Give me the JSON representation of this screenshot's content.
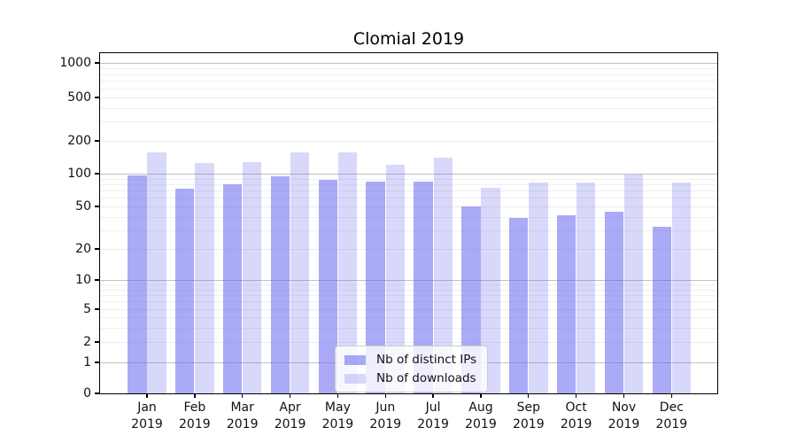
{
  "chart_data": {
    "type": "bar",
    "title": "Clomial 2019",
    "categories": [
      "Jan",
      "Feb",
      "Mar",
      "Apr",
      "May",
      "Jun",
      "Jul",
      "Aug",
      "Sep",
      "Oct",
      "Nov",
      "Dec"
    ],
    "year_label": "2019",
    "series": [
      {
        "name": "Nb of distinct IPs",
        "color": "rgba(100,100,240,0.55)",
        "values": [
          96,
          73,
          80,
          95,
          87,
          85,
          85,
          50,
          39,
          41,
          45,
          32
        ]
      },
      {
        "name": "Nb of downloads",
        "color": "rgba(100,100,240,0.25)",
        "values": [
          156,
          125,
          127,
          158,
          156,
          121,
          140,
          74,
          83,
          83,
          99,
          83
        ]
      }
    ],
    "xlabel": "",
    "ylabel": "",
    "yscale": "symlog",
    "yticks": [
      0,
      1,
      2,
      5,
      10,
      20,
      50,
      100,
      200,
      500,
      1000
    ],
    "ylim": [
      0,
      1000
    ],
    "grid": true,
    "legend_position": "lower center",
    "colors": {
      "major_grid": "#c0c0c0",
      "minor_grid": "#efefef",
      "axis": "#000000",
      "background": "#ffffff"
    }
  }
}
